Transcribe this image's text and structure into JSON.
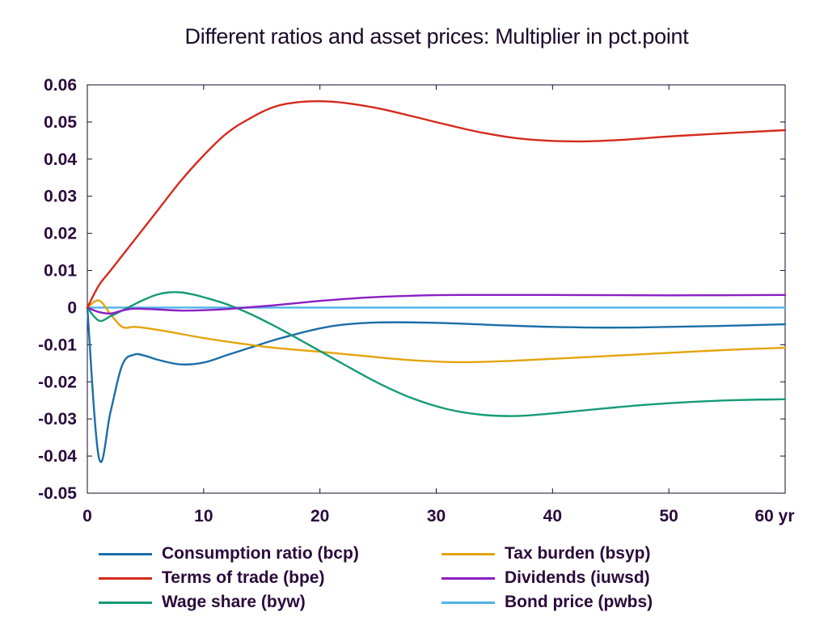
{
  "chart_data": {
    "type": "line",
    "title": "Different ratios and asset prices: Multiplier in pct.point",
    "xlabel": "",
    "ylabel": "",
    "x_unit": "yr",
    "xlim": [
      0,
      60
    ],
    "ylim": [
      -0.05,
      0.06
    ],
    "x_ticks": [
      0,
      10,
      20,
      30,
      40,
      50,
      60
    ],
    "x_tick_labels": [
      "0",
      "10",
      "20",
      "30",
      "40",
      "50",
      "60 yr"
    ],
    "y_ticks": [
      0.06,
      0.05,
      0.04,
      0.03,
      0.02,
      0.01,
      0,
      -0.01,
      -0.02,
      -0.03,
      -0.04,
      -0.05
    ],
    "y_tick_labels": [
      "0.06",
      "0.05",
      "0.04",
      "0.03",
      "0.02",
      "0.01",
      "0",
      "-0.01",
      "-0.02",
      "-0.03",
      "-0.04",
      "-0.05"
    ],
    "grid": false,
    "zero_line": true,
    "legend_position": "bottom",
    "series": [
      {
        "name": "Consumption ratio (bcp)",
        "color": "#1a6ea8",
        "points": [
          [
            0,
            0
          ],
          [
            1,
            -0.0405
          ],
          [
            2,
            -0.028
          ],
          [
            3,
            -0.0155
          ],
          [
            4,
            -0.0127
          ],
          [
            5,
            -0.013
          ],
          [
            6,
            -0.014
          ],
          [
            8,
            -0.0153
          ],
          [
            10,
            -0.0148
          ],
          [
            12,
            -0.0128
          ],
          [
            14,
            -0.0108
          ],
          [
            16,
            -0.0088
          ],
          [
            18,
            -0.0071
          ],
          [
            20,
            -0.0056
          ],
          [
            22,
            -0.0046
          ],
          [
            25,
            -0.004
          ],
          [
            30,
            -0.0041
          ],
          [
            35,
            -0.0047
          ],
          [
            40,
            -0.0052
          ],
          [
            45,
            -0.0054
          ],
          [
            50,
            -0.0052
          ],
          [
            55,
            -0.0049
          ],
          [
            60,
            -0.0045
          ]
        ]
      },
      {
        "name": "Terms of trade (bpe)",
        "color": "#d42a1e",
        "points": [
          [
            0,
            0
          ],
          [
            1,
            0.006
          ],
          [
            2,
            0.01
          ],
          [
            4,
            0.018
          ],
          [
            6,
            0.026
          ],
          [
            8,
            0.034
          ],
          [
            10,
            0.041
          ],
          [
            12,
            0.047
          ],
          [
            14,
            0.051
          ],
          [
            16,
            0.054
          ],
          [
            18,
            0.0553
          ],
          [
            20,
            0.0556
          ],
          [
            22,
            0.0552
          ],
          [
            25,
            0.0537
          ],
          [
            28,
            0.0515
          ],
          [
            31,
            0.0492
          ],
          [
            34,
            0.0471
          ],
          [
            37,
            0.0456
          ],
          [
            40,
            0.0449
          ],
          [
            43,
            0.0448
          ],
          [
            46,
            0.0452
          ],
          [
            50,
            0.0461
          ],
          [
            55,
            0.047
          ],
          [
            60,
            0.0478
          ]
        ]
      },
      {
        "name": "Wage share (byw)",
        "color": "#169a77",
        "points": [
          [
            0,
            0
          ],
          [
            1,
            -0.0035
          ],
          [
            2,
            -0.0023
          ],
          [
            3,
            -0.0008
          ],
          [
            4,
            0.0008
          ],
          [
            5,
            0.0023
          ],
          [
            6,
            0.0035
          ],
          [
            7,
            0.0041
          ],
          [
            8,
            0.0041
          ],
          [
            9,
            0.0036
          ],
          [
            10,
            0.0028
          ],
          [
            12,
            0.0009
          ],
          [
            14,
            -0.0017
          ],
          [
            16,
            -0.0048
          ],
          [
            18,
            -0.0082
          ],
          [
            20,
            -0.0117
          ],
          [
            22,
            -0.0152
          ],
          [
            25,
            -0.0203
          ],
          [
            28,
            -0.0245
          ],
          [
            31,
            -0.0274
          ],
          [
            34,
            -0.0289
          ],
          [
            37,
            -0.0292
          ],
          [
            40,
            -0.0285
          ],
          [
            44,
            -0.0273
          ],
          [
            48,
            -0.0262
          ],
          [
            52,
            -0.0254
          ],
          [
            56,
            -0.0249
          ],
          [
            60,
            -0.0247
          ]
        ]
      },
      {
        "name": "Tax burden (bsyp)",
        "color": "#e3a40c",
        "points": [
          [
            0,
            0
          ],
          [
            1,
            0.0019
          ],
          [
            2,
            -0.0018
          ],
          [
            3,
            -0.0052
          ],
          [
            4,
            -0.0052
          ],
          [
            5,
            -0.0055
          ],
          [
            7,
            -0.0065
          ],
          [
            10,
            -0.0082
          ],
          [
            13,
            -0.0096
          ],
          [
            16,
            -0.0108
          ],
          [
            20,
            -0.0119
          ],
          [
            24,
            -0.0131
          ],
          [
            28,
            -0.0142
          ],
          [
            32,
            -0.0147
          ],
          [
            36,
            -0.0144
          ],
          [
            40,
            -0.0138
          ],
          [
            45,
            -0.013
          ],
          [
            50,
            -0.0122
          ],
          [
            55,
            -0.0114
          ],
          [
            60,
            -0.0108
          ]
        ]
      },
      {
        "name": "Dividends (iuwsd)",
        "color": "#8b1fc4",
        "points": [
          [
            0,
            0
          ],
          [
            1,
            -0.0012
          ],
          [
            2,
            -0.0016
          ],
          [
            3,
            -0.0008
          ],
          [
            4,
            -0.0003
          ],
          [
            6,
            -0.0005
          ],
          [
            8,
            -0.0008
          ],
          [
            10,
            -0.0007
          ],
          [
            12,
            -0.0004
          ],
          [
            14,
            0.0001
          ],
          [
            16,
            0.0006
          ],
          [
            18,
            0.0012
          ],
          [
            20,
            0.0018
          ],
          [
            24,
            0.0027
          ],
          [
            28,
            0.0032
          ],
          [
            32,
            0.0034
          ],
          [
            40,
            0.0034
          ],
          [
            50,
            0.0033
          ],
          [
            60,
            0.0034
          ]
        ]
      },
      {
        "name": "Bond price (pwbs)",
        "color": "#4fb3e8",
        "points": [
          [
            0,
            0
          ],
          [
            60,
            0
          ]
        ]
      }
    ]
  }
}
